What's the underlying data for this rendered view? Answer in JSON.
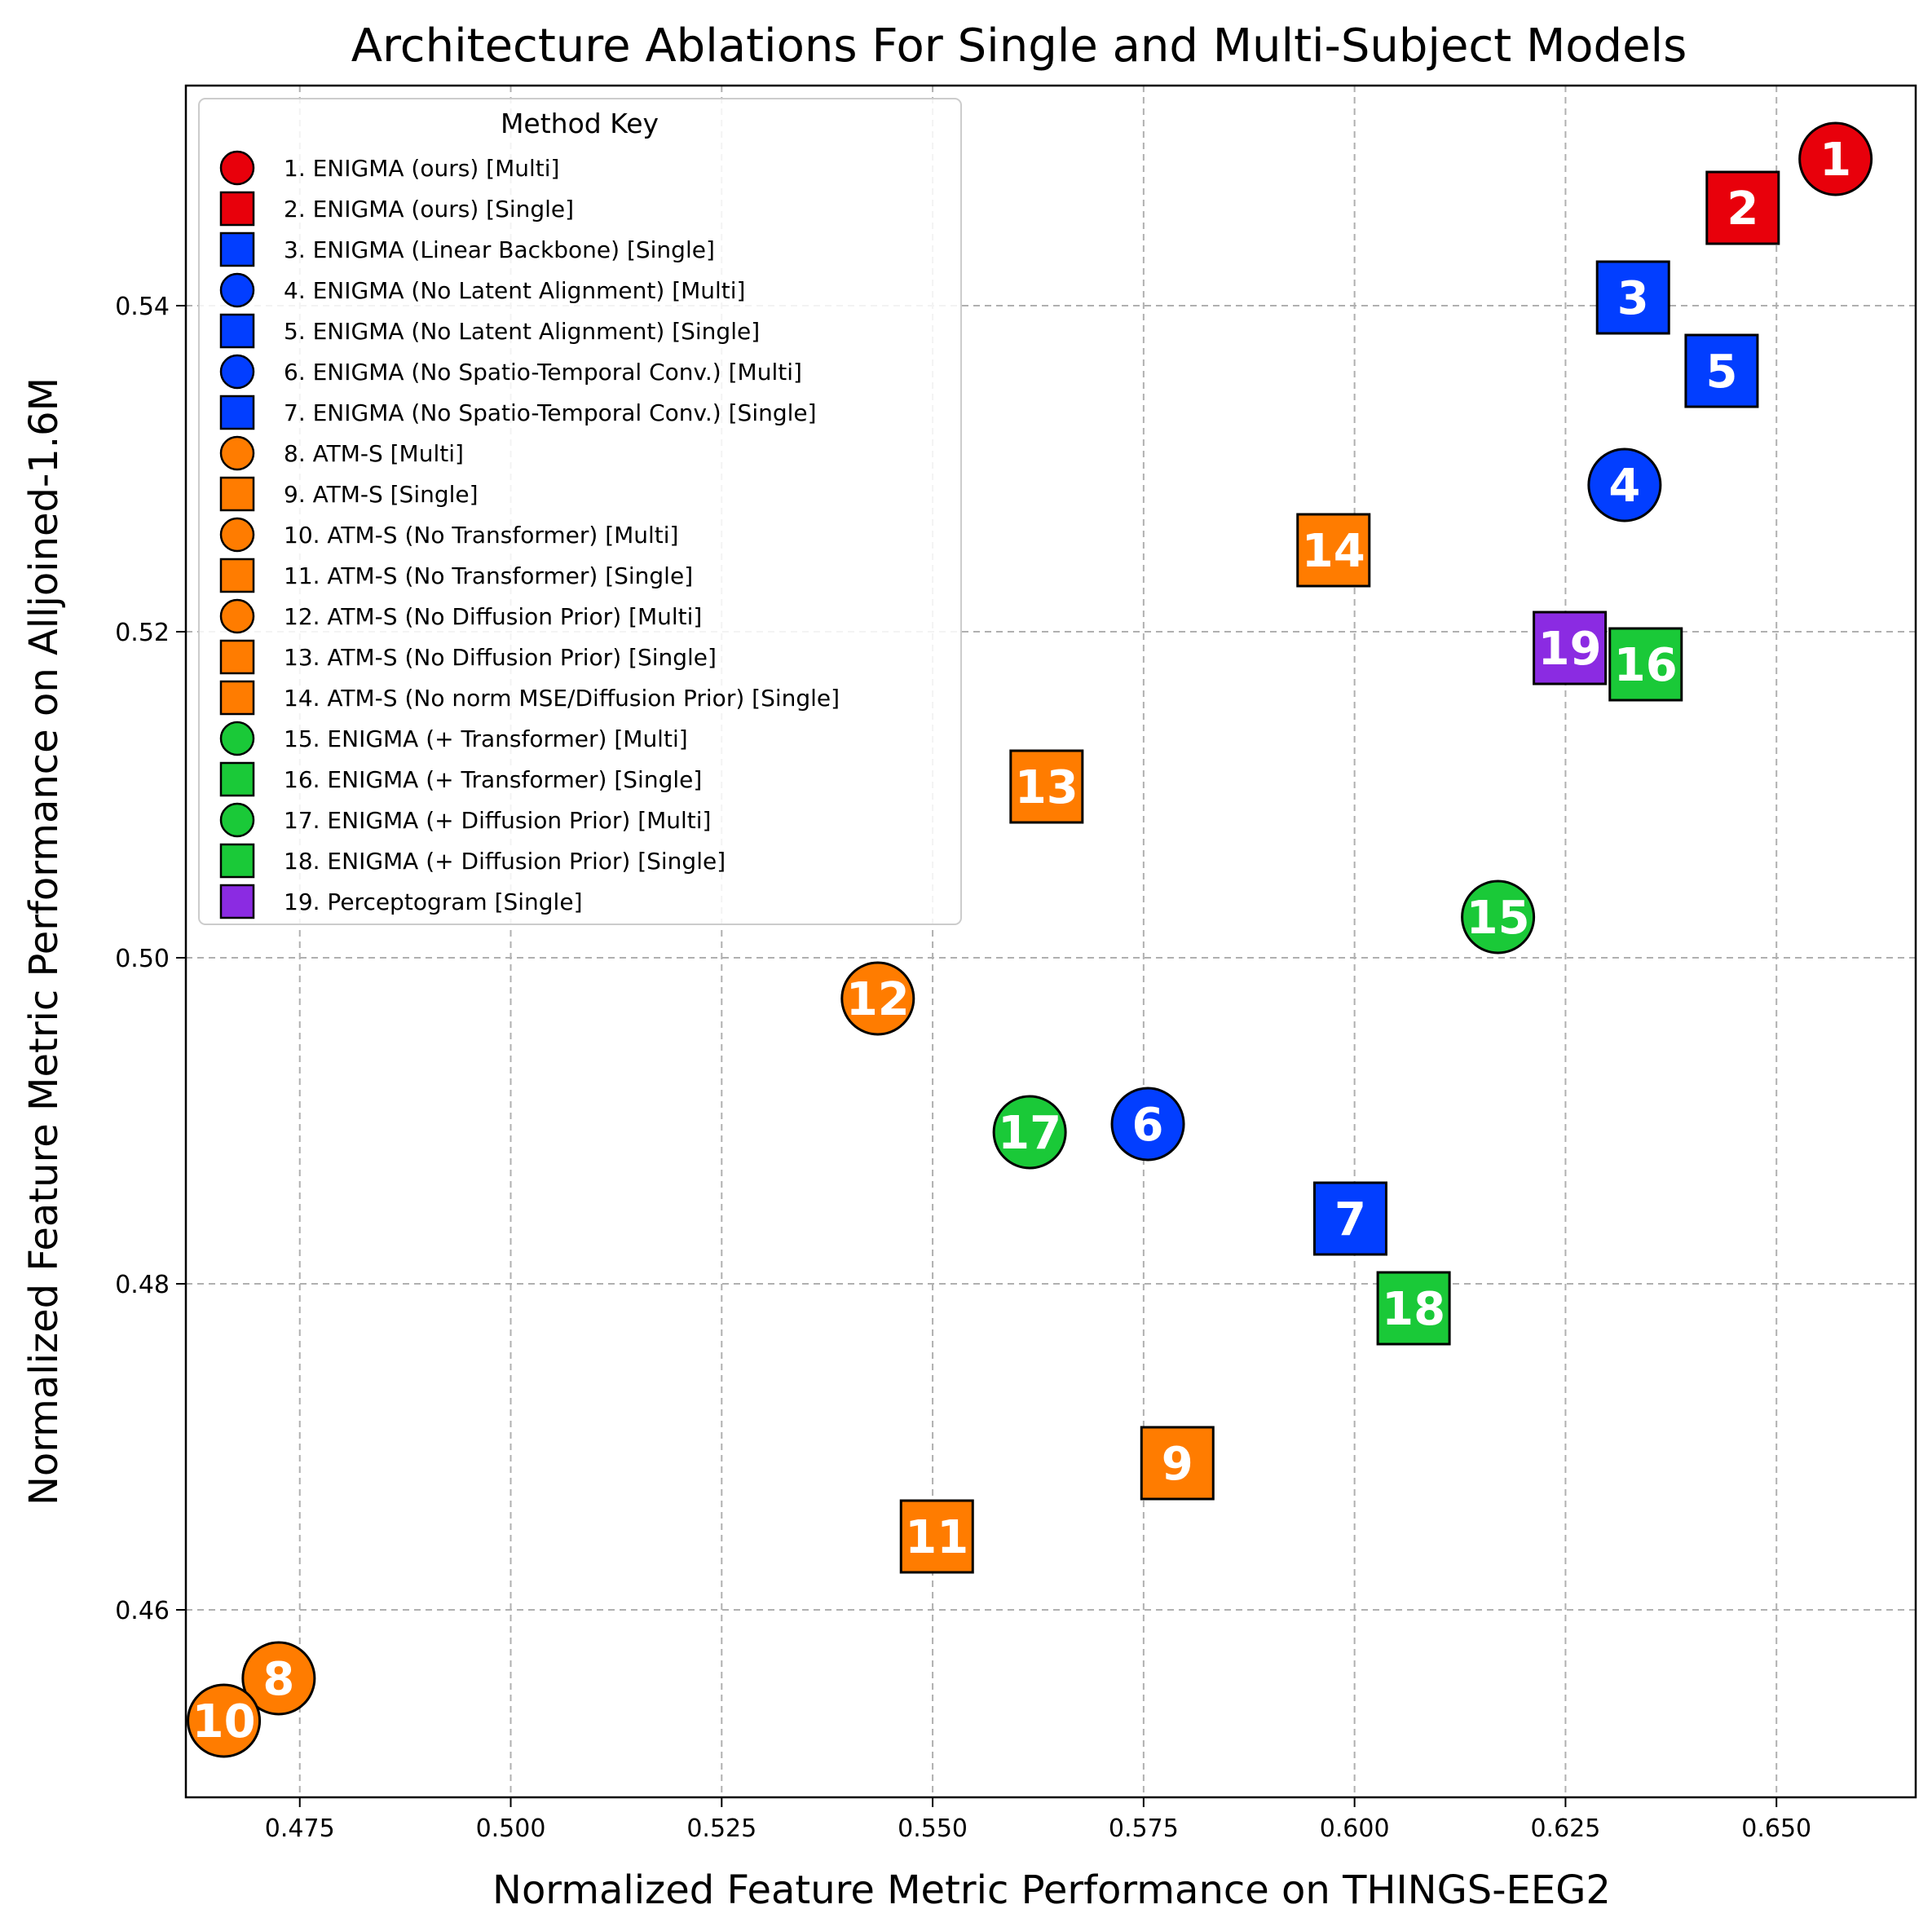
{
  "chart_data": {
    "type": "scatter",
    "title": "Architecture Ablations For Single and Multi-Subject Models",
    "xlabel": "Normalized Feature Metric Performance on THINGS-EEG2",
    "ylabel": "Normalized Feature Metric Performance on Alljoined-1.6M",
    "xlim": [
      0.4615,
      0.6665
    ],
    "ylim": [
      0.4485,
      0.5535
    ],
    "xticks": [
      "0.475",
      "0.500",
      "0.525",
      "0.550",
      "0.575",
      "0.600",
      "0.625",
      "0.650"
    ],
    "yticks": [
      "0.46",
      "0.48",
      "0.50",
      "0.52",
      "0.54"
    ],
    "grid": true,
    "legend": {
      "title": "Method Key",
      "placement": "upper-left"
    },
    "colors": {
      "red": "#e8000b",
      "blue": "#023eff",
      "orange": "#ff7c00",
      "green": "#1ac938",
      "purple": "#8b2be2"
    },
    "points": [
      {
        "label": "1",
        "legend": "1. ENIGMA (ours) [Multi]",
        "marker": "circle",
        "color": "#e8000b",
        "x": 0.657,
        "y": 0.549
      },
      {
        "label": "2",
        "legend": "2. ENIGMA (ours) [Single]",
        "marker": "square",
        "color": "#e8000b",
        "x": 0.646,
        "y": 0.546
      },
      {
        "label": "3",
        "legend": "3. ENIGMA (Linear Backbone) [Single]",
        "marker": "square",
        "color": "#023eff",
        "x": 0.633,
        "y": 0.5405
      },
      {
        "label": "4",
        "legend": "4. ENIGMA (No Latent Alignment) [Multi]",
        "marker": "circle",
        "color": "#023eff",
        "x": 0.632,
        "y": 0.529
      },
      {
        "label": "5",
        "legend": "5. ENIGMA (No Latent Alignment) [Single]",
        "marker": "square",
        "color": "#023eff",
        "x": 0.6435,
        "y": 0.536
      },
      {
        "label": "6",
        "legend": "6. ENIGMA (No Spatio-Temporal Conv.) [Multi]",
        "marker": "circle",
        "color": "#023eff",
        "x": 0.5755,
        "y": 0.4898
      },
      {
        "label": "7",
        "legend": "7. ENIGMA (No Spatio-Temporal Conv.) [Single]",
        "marker": "square",
        "color": "#023eff",
        "x": 0.5995,
        "y": 0.484
      },
      {
        "label": "8",
        "legend": "8. ATM-S [Multi]",
        "marker": "circle",
        "color": "#ff7c00",
        "x": 0.4725,
        "y": 0.4558
      },
      {
        "label": "9",
        "legend": "9. ATM-S [Single]",
        "marker": "square",
        "color": "#ff7c00",
        "x": 0.579,
        "y": 0.469
      },
      {
        "label": "10",
        "legend": "10. ATM-S (No Transformer) [Multi]",
        "marker": "circle",
        "color": "#ff7c00",
        "x": 0.466,
        "y": 0.4532
      },
      {
        "label": "11",
        "legend": "11. ATM-S (No Transformer) [Single]",
        "marker": "square",
        "color": "#ff7c00",
        "x": 0.5505,
        "y": 0.4645
      },
      {
        "label": "12",
        "legend": "12. ATM-S (No Diffusion Prior) [Multi]",
        "marker": "circle",
        "color": "#ff7c00",
        "x": 0.5435,
        "y": 0.4975
      },
      {
        "label": "13",
        "legend": "13. ATM-S (No Diffusion Prior) [Single]",
        "marker": "square",
        "color": "#ff7c00",
        "x": 0.5635,
        "y": 0.5105
      },
      {
        "label": "14",
        "legend": "14. ATM-S (No norm MSE/Diffusion Prior) [Single]",
        "marker": "square",
        "color": "#ff7c00",
        "x": 0.5975,
        "y": 0.525
      },
      {
        "label": "15",
        "legend": "15. ENIGMA (+ Transformer) [Multi]",
        "marker": "circle",
        "color": "#1ac938",
        "x": 0.617,
        "y": 0.5025
      },
      {
        "label": "16",
        "legend": "16. ENIGMA (+ Transformer) [Single]",
        "marker": "square",
        "color": "#1ac938",
        "x": 0.6345,
        "y": 0.518
      },
      {
        "label": "17",
        "legend": "17. ENIGMA (+ Diffusion Prior) [Multi]",
        "marker": "circle",
        "color": "#1ac938",
        "x": 0.5615,
        "y": 0.4893
      },
      {
        "label": "18",
        "legend": "18. ENIGMA (+ Diffusion Prior) [Single]",
        "marker": "square",
        "color": "#1ac938",
        "x": 0.607,
        "y": 0.4785
      },
      {
        "label": "19",
        "legend": "19. Perceptogram [Single]",
        "marker": "square",
        "color": "#8b2be2",
        "x": 0.6255,
        "y": 0.519
      }
    ]
  }
}
